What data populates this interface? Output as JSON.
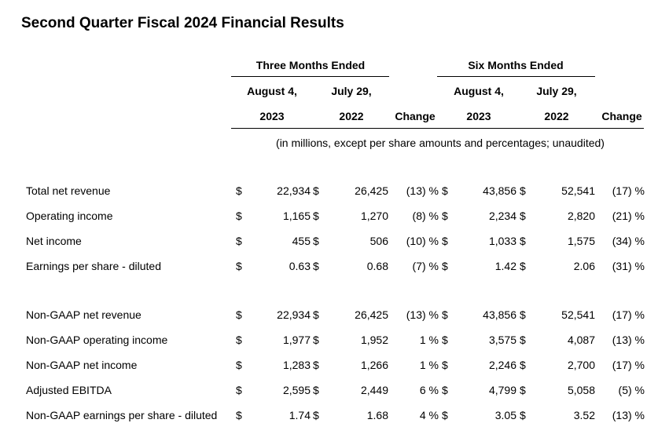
{
  "title": "Second Quarter Fiscal 2024 Financial Results",
  "header": {
    "three_months": "Three Months Ended",
    "six_months": "Six Months Ended",
    "col_aug_line1": "August 4,",
    "col_aug_line2": "2023",
    "col_jul_line1": "July 29,",
    "col_jul_line2": "2022",
    "change": "Change",
    "note": "(in millions, except per share amounts and percentages; unaudited)"
  },
  "rows": [
    {
      "label": "Total net revenue",
      "d1": "$",
      "v1": "22,934",
      "d2": "$",
      "v2": "26,425",
      "chg3": "(13) %",
      "d3": "$",
      "v3": "43,856",
      "d4": "$",
      "v4": "52,541",
      "chg6": "(17) %"
    },
    {
      "label": "Operating income",
      "d1": "$",
      "v1": "1,165",
      "d2": "$",
      "v2": "1,270",
      "chg3": "(8) %",
      "d3": "$",
      "v3": "2,234",
      "d4": "$",
      "v4": "2,820",
      "chg6": "(21) %"
    },
    {
      "label": "Net income",
      "d1": "$",
      "v1": "455",
      "d2": "$",
      "v2": "506",
      "chg3": "(10) %",
      "d3": "$",
      "v3": "1,033",
      "d4": "$",
      "v4": "1,575",
      "chg6": "(34) %"
    },
    {
      "label": "Earnings per share - diluted",
      "d1": "$",
      "v1": "0.63",
      "d2": "$",
      "v2": "0.68",
      "chg3": "(7) %",
      "d3": "$",
      "v3": "1.42",
      "d4": "$",
      "v4": "2.06",
      "chg6": "(31) %"
    },
    {
      "label": "Non-GAAP net revenue",
      "d1": "$",
      "v1": "22,934",
      "d2": "$",
      "v2": "26,425",
      "chg3": "(13) %",
      "d3": "$",
      "v3": "43,856",
      "d4": "$",
      "v4": "52,541",
      "chg6": "(17) %"
    },
    {
      "label": "Non-GAAP operating income",
      "d1": "$",
      "v1": "1,977",
      "d2": "$",
      "v2": "1,952",
      "chg3": "1 %",
      "d3": "$",
      "v3": "3,575",
      "d4": "$",
      "v4": "4,087",
      "chg6": "(13) %"
    },
    {
      "label": "Non-GAAP net income",
      "d1": "$",
      "v1": "1,283",
      "d2": "$",
      "v2": "1,266",
      "chg3": "1 %",
      "d3": "$",
      "v3": "2,246",
      "d4": "$",
      "v4": "2,700",
      "chg6": "(17) %"
    },
    {
      "label": "Adjusted EBITDA",
      "d1": "$",
      "v1": "2,595",
      "d2": "$",
      "v2": "2,449",
      "chg3": "6 %",
      "d3": "$",
      "v3": "4,799",
      "d4": "$",
      "v4": "5,058",
      "chg6": "(5) %"
    },
    {
      "label": "Non-GAAP earnings per share - diluted",
      "d1": "$",
      "v1": "1.74",
      "d2": "$",
      "v2": "1.68",
      "chg3": "4 %",
      "d3": "$",
      "v3": "3.05",
      "d4": "$",
      "v4": "3.52",
      "chg6": "(13) %"
    }
  ]
}
